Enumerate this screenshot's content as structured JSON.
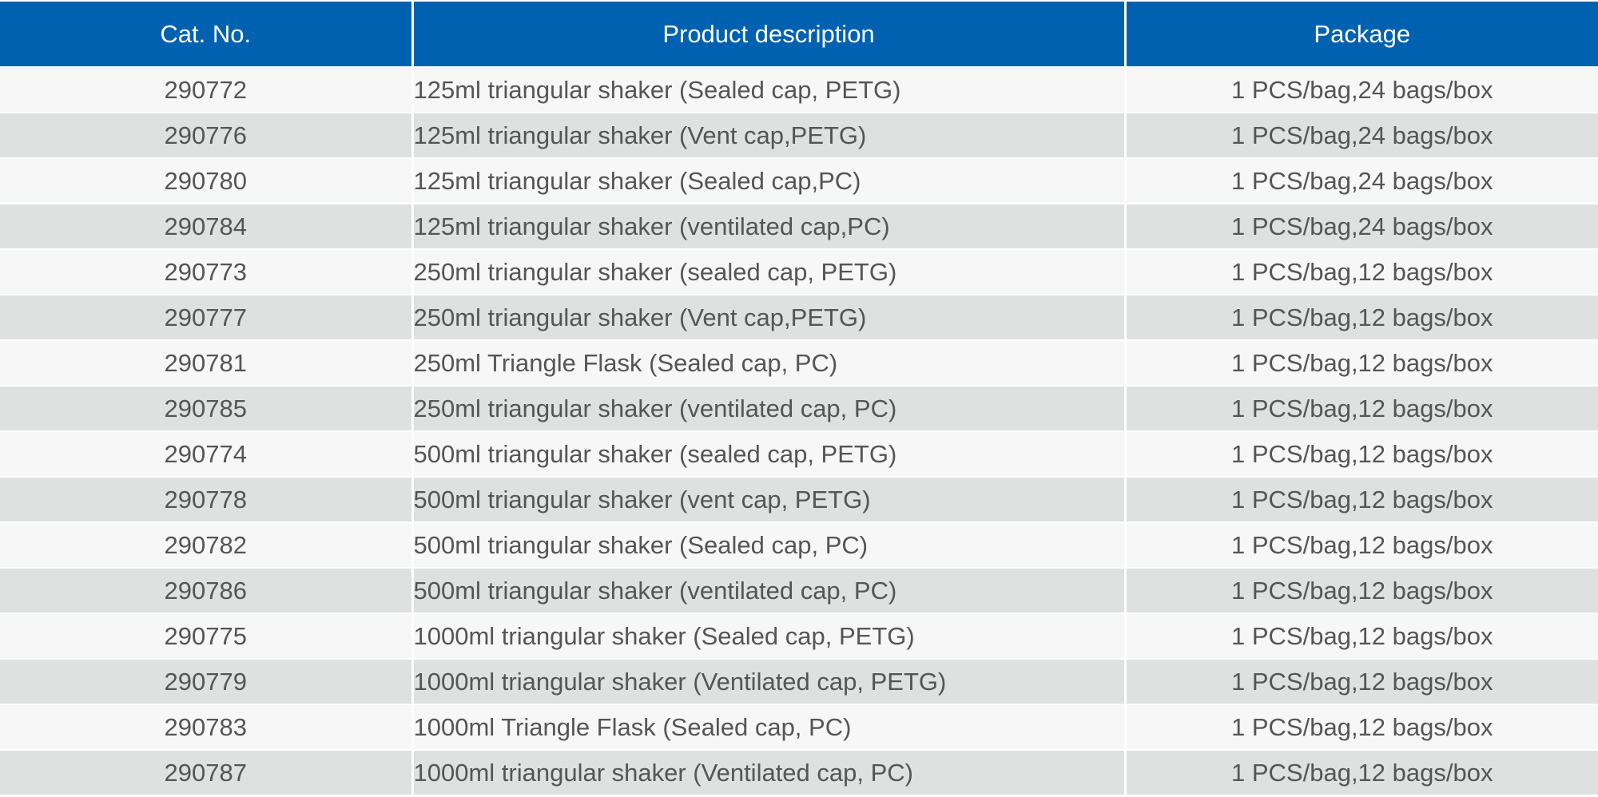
{
  "colors": {
    "header_bg": "#0061b1",
    "row_odd": "#f7f7f7",
    "row_even": "#dfe0e0",
    "text": "#555555",
    "header_text": "#ffffff"
  },
  "table": {
    "headers": [
      "Cat. No.",
      "Product description",
      "Package"
    ],
    "rows": [
      [
        "290772",
        "125ml triangular shaker (Sealed cap, PETG)",
        "1 PCS/bag,24 bags/box"
      ],
      [
        "290776",
        "125ml triangular shaker (Vent cap,PETG)",
        "1 PCS/bag,24 bags/box"
      ],
      [
        "290780",
        "125ml triangular shaker (Sealed cap,PC)",
        "1 PCS/bag,24 bags/box"
      ],
      [
        "290784",
        "125ml triangular shaker (ventilated cap,PC)",
        "1 PCS/bag,24 bags/box"
      ],
      [
        "290773",
        "250ml triangular shaker (sealed cap, PETG)",
        "1 PCS/bag,12 bags/box"
      ],
      [
        "290777",
        "250ml triangular shaker (Vent cap,PETG)",
        "1 PCS/bag,12 bags/box"
      ],
      [
        "290781",
        "250ml Triangle Flask (Sealed cap, PC)",
        "1 PCS/bag,12 bags/box"
      ],
      [
        "290785",
        "250ml triangular shaker (ventilated cap, PC)",
        "1 PCS/bag,12 bags/box"
      ],
      [
        "290774",
        "500ml triangular shaker (sealed cap, PETG)",
        "1 PCS/bag,12 bags/box"
      ],
      [
        "290778",
        "500ml triangular shaker (vent cap, PETG)",
        "1 PCS/bag,12 bags/box"
      ],
      [
        "290782",
        "500ml triangular shaker (Sealed cap, PC)",
        "1 PCS/bag,12 bags/box"
      ],
      [
        "290786",
        "500ml triangular shaker (ventilated cap, PC)",
        "1 PCS/bag,12 bags/box"
      ],
      [
        "290775",
        "1000ml triangular shaker (Sealed cap, PETG)",
        "1 PCS/bag,12 bags/box"
      ],
      [
        "290779",
        "1000ml triangular shaker (Ventilated cap, PETG)",
        "1 PCS/bag,12 bags/box"
      ],
      [
        "290783",
        "1000ml Triangle Flask (Sealed cap, PC)",
        "1 PCS/bag,12 bags/box"
      ],
      [
        "290787",
        "1000ml triangular shaker (Ventilated cap, PC)",
        "1 PCS/bag,12 bags/box"
      ]
    ]
  }
}
